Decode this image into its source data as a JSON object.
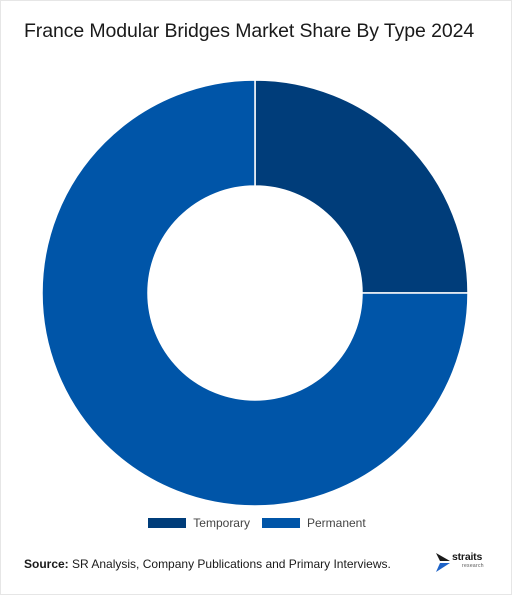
{
  "chart_data": {
    "type": "pie",
    "title": "France Modular Bridges Market Share By Type 2024",
    "donut": true,
    "categories": [
      "Temporary",
      "Permanent"
    ],
    "values": [
      25,
      75
    ],
    "colors": [
      "#003d7a",
      "#0055a8"
    ],
    "legend_position": "bottom-center"
  },
  "source": {
    "label": "Source:",
    "text": "SR Analysis, Company Publications and Primary Interviews."
  },
  "logo": {
    "word": "straits",
    "sub": "research",
    "mark_colors": [
      "#1a1a1a",
      "#1e63c8"
    ]
  }
}
